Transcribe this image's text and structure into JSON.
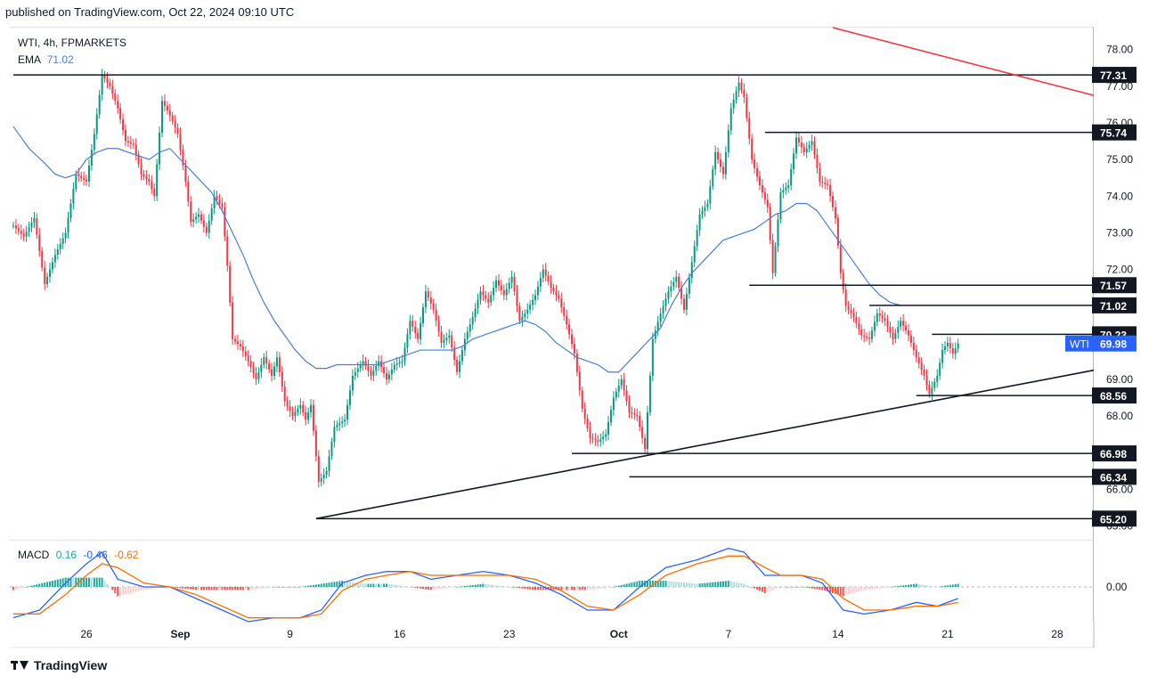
{
  "header": {
    "published": "published on TradingView.com, Oct 22, 2024 09:10 UTC"
  },
  "footer": {
    "brand": "TradingView"
  },
  "chart_data": {
    "type": "candlestick",
    "symbol_line": "WTI, 4h, FPMARKETS",
    "ema": {
      "label": "EMA",
      "value": "71.02",
      "color": "#4a7fd6"
    },
    "last_price": {
      "label": "WTI",
      "value": "69.98",
      "color": "#2962ff"
    },
    "y_axis": {
      "min": 64.6,
      "max": 78.6,
      "ticks": [
        "65.00",
        "66.00",
        "67.00",
        "68.00",
        "69.00",
        "70.00",
        "71.00",
        "72.00",
        "73.00",
        "74.00",
        "75.00",
        "76.00",
        "77.00",
        "78.00"
      ]
    },
    "x_axis": {
      "ticks": [
        {
          "label": "26",
          "bar": 28
        },
        {
          "label": "Sep",
          "bar": 64
        },
        {
          "label": "9",
          "bar": 106
        },
        {
          "label": "16",
          "bar": 148
        },
        {
          "label": "23",
          "bar": 190
        },
        {
          "label": "Oct",
          "bar": 232
        },
        {
          "label": "7",
          "bar": 274
        },
        {
          "label": "14",
          "bar": 316
        },
        {
          "label": "21",
          "bar": 358
        },
        {
          "label": "28",
          "bar": 400
        }
      ]
    },
    "levels": [
      {
        "label": "77.31",
        "value": 77.31,
        "from_bar": 0
      },
      {
        "label": "75.74",
        "value": 75.74,
        "from_bar": 288
      },
      {
        "label": "71.57",
        "value": 71.57,
        "from_bar": 282
      },
      {
        "label": "71.02",
        "value": 71.02,
        "from_bar": 328
      },
      {
        "label": "70.23",
        "value": 70.23,
        "from_bar": 352
      },
      {
        "label": "68.56",
        "value": 68.56,
        "from_bar": 346
      },
      {
        "label": "66.98",
        "value": 66.98,
        "from_bar": 214
      },
      {
        "label": "66.34",
        "value": 66.34,
        "from_bar": 236
      },
      {
        "label": "65.20",
        "value": 65.2,
        "from_bar": 116
      }
    ],
    "trendlines": [
      {
        "name": "support",
        "color": "#131722",
        "x1_bar": 116,
        "y1": 65.2,
        "x2_bar": 424,
        "y2": 69.25
      },
      {
        "name": "resistance",
        "color": "#f23645",
        "x1_bar": 314,
        "y1": 78.6,
        "x2_bar": 424,
        "y2": 76.75
      }
    ],
    "price_path": [
      [
        0,
        73.2
      ],
      [
        4,
        72.9
      ],
      [
        8,
        73.4
      ],
      [
        12,
        71.6
      ],
      [
        16,
        72.4
      ],
      [
        20,
        73.0
      ],
      [
        24,
        74.6
      ],
      [
        28,
        74.4
      ],
      [
        31,
        75.7
      ],
      [
        34,
        77.3
      ],
      [
        37,
        77.0
      ],
      [
        40,
        76.4
      ],
      [
        43,
        75.5
      ],
      [
        46,
        75.4
      ],
      [
        49,
        74.6
      ],
      [
        52,
        74.4
      ],
      [
        54,
        74.0
      ],
      [
        57,
        76.6
      ],
      [
        60,
        76.2
      ],
      [
        63,
        75.7
      ],
      [
        66,
        74.4
      ],
      [
        68,
        73.3
      ],
      [
        71,
        73.5
      ],
      [
        74,
        73.0
      ],
      [
        77,
        74.0
      ],
      [
        80,
        73.7
      ],
      [
        82,
        72.1
      ],
      [
        84,
        70.1
      ],
      [
        87,
        69.9
      ],
      [
        90,
        69.5
      ],
      [
        93,
        69.0
      ],
      [
        96,
        69.6
      ],
      [
        99,
        69.1
      ],
      [
        101,
        69.6
      ],
      [
        104,
        68.4
      ],
      [
        107,
        68.0
      ],
      [
        110,
        68.3
      ],
      [
        112,
        67.9
      ],
      [
        114,
        68.3
      ],
      [
        117,
        66.2
      ],
      [
        120,
        66.5
      ],
      [
        123,
        67.7
      ],
      [
        127,
        67.9
      ],
      [
        130,
        69.1
      ],
      [
        134,
        69.5
      ],
      [
        137,
        69.1
      ],
      [
        140,
        69.5
      ],
      [
        143,
        69.0
      ],
      [
        146,
        69.4
      ],
      [
        149,
        69.5
      ],
      [
        152,
        70.6
      ],
      [
        155,
        70.1
      ],
      [
        158,
        71.4
      ],
      [
        161,
        70.9
      ],
      [
        164,
        70.0
      ],
      [
        167,
        70.2
      ],
      [
        170,
        69.2
      ],
      [
        173,
        70.1
      ],
      [
        176,
        70.7
      ],
      [
        179,
        71.4
      ],
      [
        182,
        71.1
      ],
      [
        185,
        71.7
      ],
      [
        188,
        71.3
      ],
      [
        191,
        71.8
      ],
      [
        194,
        70.6
      ],
      [
        197,
        70.9
      ],
      [
        200,
        71.3
      ],
      [
        203,
        72.0
      ],
      [
        206,
        71.5
      ],
      [
        209,
        71.2
      ],
      [
        212,
        70.5
      ],
      [
        215,
        69.7
      ],
      [
        218,
        68.2
      ],
      [
        221,
        67.4
      ],
      [
        224,
        67.3
      ],
      [
        227,
        67.5
      ],
      [
        230,
        68.5
      ],
      [
        233,
        69.0
      ],
      [
        236,
        68.1
      ],
      [
        239,
        68.0
      ],
      [
        242,
        67.1
      ],
      [
        245,
        70.1
      ],
      [
        248,
        70.8
      ],
      [
        251,
        71.4
      ],
      [
        254,
        71.8
      ],
      [
        257,
        70.9
      ],
      [
        260,
        72.2
      ],
      [
        263,
        73.5
      ],
      [
        266,
        73.8
      ],
      [
        269,
        75.2
      ],
      [
        272,
        74.6
      ],
      [
        275,
        76.4
      ],
      [
        278,
        77.1
      ],
      [
        280,
        76.7
      ],
      [
        283,
        75.0
      ],
      [
        286,
        74.3
      ],
      [
        289,
        73.7
      ],
      [
        291,
        71.9
      ],
      [
        294,
        74.1
      ],
      [
        297,
        74.3
      ],
      [
        300,
        75.6
      ],
      [
        303,
        75.2
      ],
      [
        306,
        75.5
      ],
      [
        309,
        74.4
      ],
      [
        312,
        74.3
      ],
      [
        315,
        73.4
      ],
      [
        317,
        71.9
      ],
      [
        319,
        71.0
      ],
      [
        322,
        70.7
      ],
      [
        325,
        70.2
      ],
      [
        328,
        70.1
      ],
      [
        331,
        70.8
      ],
      [
        334,
        70.6
      ],
      [
        337,
        70.1
      ],
      [
        340,
        70.6
      ],
      [
        343,
        70.2
      ],
      [
        346,
        69.6
      ],
      [
        349,
        69.1
      ],
      [
        351,
        68.6
      ],
      [
        354,
        69.1
      ],
      [
        356,
        69.8
      ],
      [
        358,
        70.0
      ],
      [
        360,
        69.7
      ],
      [
        362,
        69.98
      ]
    ],
    "ema_path": [
      [
        0,
        75.9
      ],
      [
        6,
        75.3
      ],
      [
        12,
        74.9
      ],
      [
        16,
        74.6
      ],
      [
        20,
        74.5
      ],
      [
        24,
        74.6
      ],
      [
        28,
        75.0
      ],
      [
        32,
        75.2
      ],
      [
        36,
        75.3
      ],
      [
        40,
        75.3
      ],
      [
        44,
        75.2
      ],
      [
        48,
        75.1
      ],
      [
        52,
        75.0
      ],
      [
        56,
        75.2
      ],
      [
        60,
        75.3
      ],
      [
        64,
        75.0
      ],
      [
        68,
        74.7
      ],
      [
        72,
        74.4
      ],
      [
        76,
        74.1
      ],
      [
        80,
        73.6
      ],
      [
        84,
        73.0
      ],
      [
        88,
        72.4
      ],
      [
        92,
        71.7
      ],
      [
        96,
        71.1
      ],
      [
        100,
        70.6
      ],
      [
        104,
        70.2
      ],
      [
        108,
        69.8
      ],
      [
        112,
        69.5
      ],
      [
        116,
        69.3
      ],
      [
        120,
        69.3
      ],
      [
        124,
        69.4
      ],
      [
        128,
        69.4
      ],
      [
        132,
        69.4
      ],
      [
        136,
        69.4
      ],
      [
        140,
        69.4
      ],
      [
        144,
        69.5
      ],
      [
        148,
        69.6
      ],
      [
        152,
        69.7
      ],
      [
        156,
        69.8
      ],
      [
        160,
        69.8
      ],
      [
        164,
        69.8
      ],
      [
        168,
        69.8
      ],
      [
        172,
        69.9
      ],
      [
        176,
        70.1
      ],
      [
        180,
        70.2
      ],
      [
        184,
        70.3
      ],
      [
        188,
        70.4
      ],
      [
        192,
        70.5
      ],
      [
        196,
        70.6
      ],
      [
        200,
        70.5
      ],
      [
        204,
        70.3
      ],
      [
        208,
        70.0
      ],
      [
        212,
        69.8
      ],
      [
        216,
        69.6
      ],
      [
        220,
        69.5
      ],
      [
        224,
        69.4
      ],
      [
        228,
        69.2
      ],
      [
        232,
        69.2
      ],
      [
        236,
        69.5
      ],
      [
        240,
        69.8
      ],
      [
        244,
        70.1
      ],
      [
        248,
        70.4
      ],
      [
        252,
        71.0
      ],
      [
        256,
        71.5
      ],
      [
        260,
        71.9
      ],
      [
        264,
        72.2
      ],
      [
        268,
        72.5
      ],
      [
        272,
        72.8
      ],
      [
        276,
        72.9
      ],
      [
        280,
        73.0
      ],
      [
        284,
        73.1
      ],
      [
        288,
        73.3
      ],
      [
        292,
        73.5
      ],
      [
        296,
        73.6
      ],
      [
        300,
        73.8
      ],
      [
        304,
        73.8
      ],
      [
        308,
        73.6
      ],
      [
        312,
        73.2
      ],
      [
        316,
        72.8
      ],
      [
        320,
        72.4
      ],
      [
        324,
        72.0
      ],
      [
        328,
        71.6
      ],
      [
        332,
        71.3
      ],
      [
        336,
        71.1
      ],
      [
        340,
        71.02
      ]
    ],
    "macd": {
      "label": "MACD",
      "values": [
        "0.16",
        "-0.46",
        "-0.62"
      ],
      "value_colors": [
        "#22ab94",
        "#2962ff",
        "#ff6d00"
      ],
      "zero_label": "0.00",
      "min": -0.9,
      "max": 1.2,
      "macd_path": [
        [
          0,
          -0.8
        ],
        [
          10,
          -0.6
        ],
        [
          20,
          0.1
        ],
        [
          28,
          0.6
        ],
        [
          34,
          0.9
        ],
        [
          40,
          0.2
        ],
        [
          50,
          0.0
        ],
        [
          60,
          0.0
        ],
        [
          70,
          -0.3
        ],
        [
          80,
          -0.6
        ],
        [
          90,
          -0.9
        ],
        [
          100,
          -0.8
        ],
        [
          110,
          -0.8
        ],
        [
          118,
          -0.6
        ],
        [
          126,
          0.1
        ],
        [
          135,
          0.3
        ],
        [
          143,
          0.4
        ],
        [
          152,
          0.4
        ],
        [
          160,
          0.2
        ],
        [
          170,
          0.3
        ],
        [
          180,
          0.4
        ],
        [
          190,
          0.3
        ],
        [
          200,
          0.1
        ],
        [
          210,
          -0.2
        ],
        [
          220,
          -0.6
        ],
        [
          230,
          -0.6
        ],
        [
          240,
          0.0
        ],
        [
          250,
          0.5
        ],
        [
          262,
          0.7
        ],
        [
          274,
          1.0
        ],
        [
          280,
          0.9
        ],
        [
          288,
          0.3
        ],
        [
          294,
          0.3
        ],
        [
          302,
          0.3
        ],
        [
          310,
          0.1
        ],
        [
          318,
          -0.6
        ],
        [
          326,
          -0.7
        ],
        [
          336,
          -0.6
        ],
        [
          346,
          -0.4
        ],
        [
          354,
          -0.5
        ],
        [
          362,
          -0.3
        ]
      ],
      "signal_path": [
        [
          0,
          -0.7
        ],
        [
          10,
          -0.7
        ],
        [
          20,
          -0.2
        ],
        [
          28,
          0.3
        ],
        [
          34,
          0.6
        ],
        [
          40,
          0.5
        ],
        [
          50,
          0.1
        ],
        [
          60,
          0.0
        ],
        [
          70,
          -0.2
        ],
        [
          80,
          -0.5
        ],
        [
          90,
          -0.8
        ],
        [
          100,
          -0.8
        ],
        [
          110,
          -0.8
        ],
        [
          118,
          -0.7
        ],
        [
          126,
          -0.1
        ],
        [
          135,
          0.2
        ],
        [
          143,
          0.3
        ],
        [
          152,
          0.4
        ],
        [
          160,
          0.3
        ],
        [
          170,
          0.3
        ],
        [
          180,
          0.3
        ],
        [
          190,
          0.3
        ],
        [
          200,
          0.2
        ],
        [
          210,
          -0.1
        ],
        [
          220,
          -0.5
        ],
        [
          230,
          -0.6
        ],
        [
          240,
          -0.2
        ],
        [
          250,
          0.3
        ],
        [
          262,
          0.6
        ],
        [
          274,
          0.8
        ],
        [
          280,
          0.8
        ],
        [
          288,
          0.5
        ],
        [
          294,
          0.3
        ],
        [
          302,
          0.3
        ],
        [
          310,
          0.2
        ],
        [
          318,
          -0.3
        ],
        [
          326,
          -0.6
        ],
        [
          336,
          -0.6
        ],
        [
          346,
          -0.5
        ],
        [
          354,
          -0.5
        ],
        [
          362,
          -0.4
        ]
      ]
    }
  }
}
